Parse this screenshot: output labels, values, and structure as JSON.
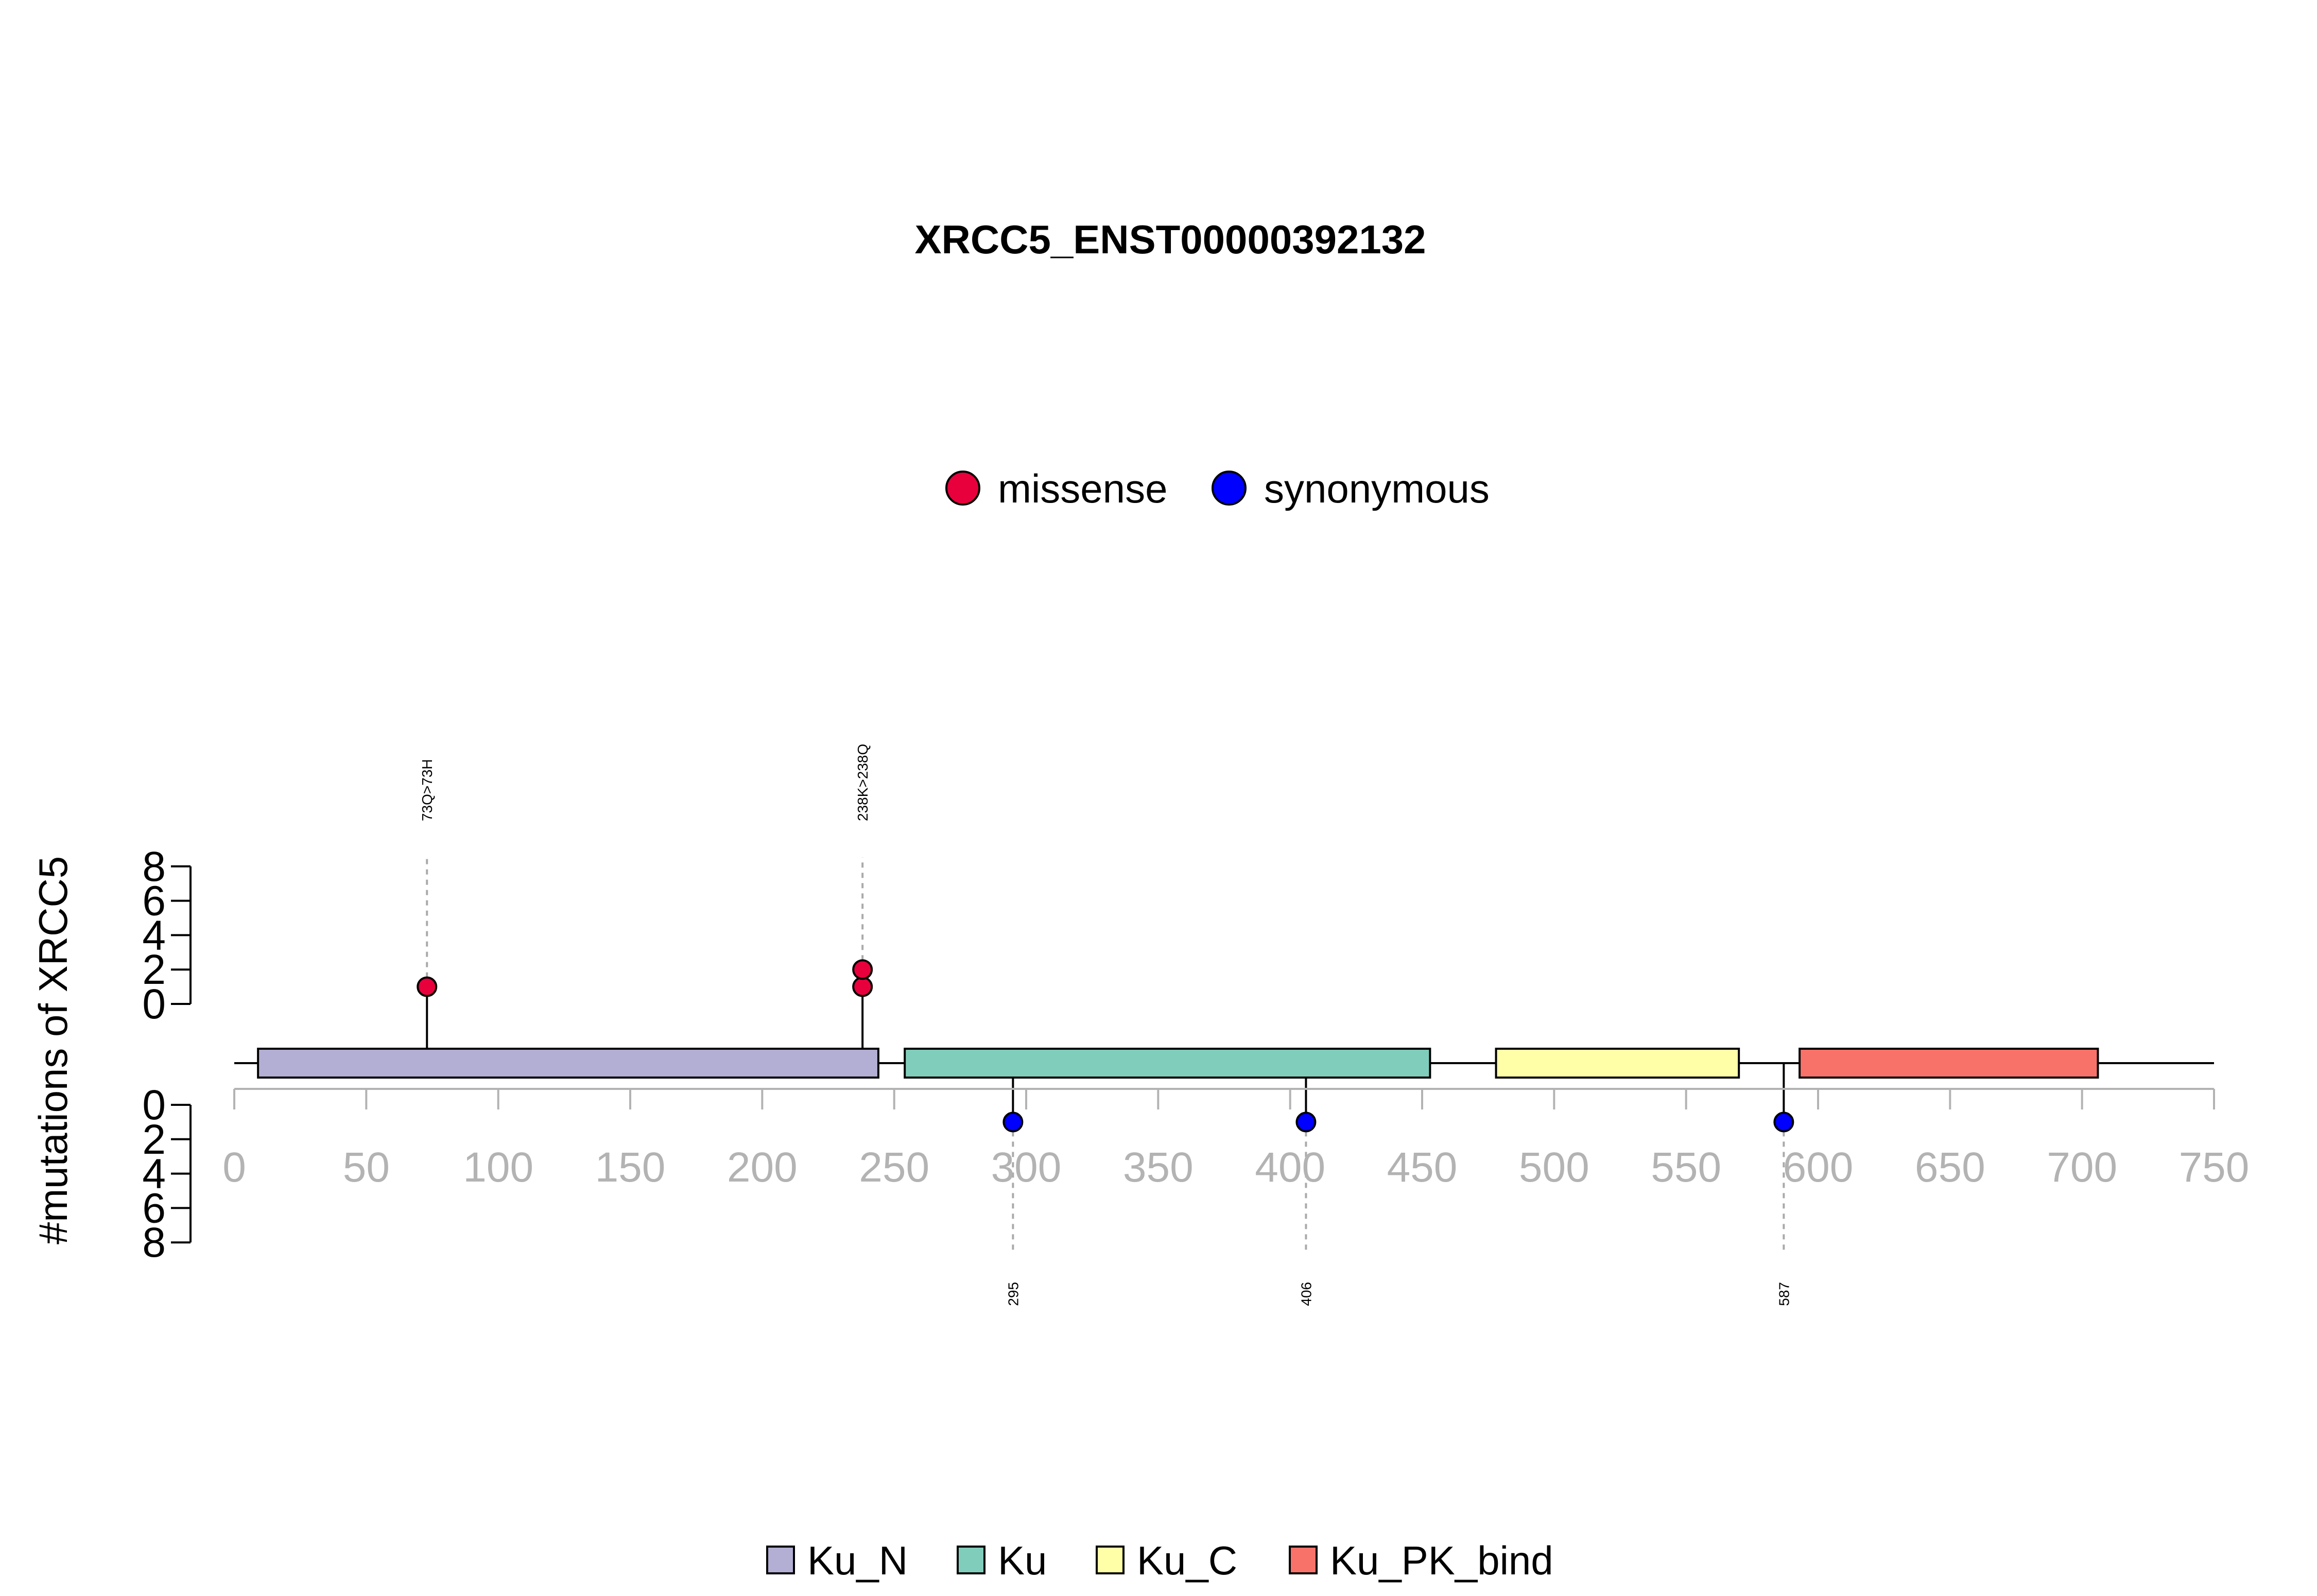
{
  "chart_data": {
    "type": "lollipop",
    "title": "XRCC5_ENST00000392132",
    "ylabel": "#mutations of XRCC5",
    "xlim": [
      0,
      750
    ],
    "x_ticks": [
      0,
      50,
      100,
      150,
      200,
      250,
      300,
      350,
      400,
      450,
      500,
      550,
      600,
      650,
      700,
      750
    ],
    "y_ticks": [
      0,
      2,
      4,
      6,
      8
    ],
    "mutation_legend": [
      {
        "name": "missense",
        "color": "#e8003c"
      },
      {
        "name": "synonymous",
        "color": "#0000ff"
      }
    ],
    "domains": [
      {
        "name": "Ku_N",
        "start": 9,
        "end": 244,
        "color": "#b3aed3"
      },
      {
        "name": "Ku",
        "start": 254,
        "end": 453,
        "color": "#80cdbb"
      },
      {
        "name": "Ku_C",
        "start": 478,
        "end": 570,
        "color": "#ffffa8"
      },
      {
        "name": "Ku_PK_bind",
        "start": 593,
        "end": 706,
        "color": "#f8726a"
      }
    ],
    "mutations_top": [
      {
        "position": 73,
        "label": "73Q>73H",
        "type": "missense",
        "count": 1
      },
      {
        "position": 238,
        "label": "238K>238Q",
        "type": "missense",
        "count": 2
      }
    ],
    "mutations_bottom": [
      {
        "position": 295,
        "label": "295",
        "type": "synonymous",
        "count": 1
      },
      {
        "position": 406,
        "label": "406",
        "type": "synonymous",
        "count": 1
      },
      {
        "position": 587,
        "label": "587",
        "type": "synonymous",
        "count": 1
      }
    ]
  }
}
